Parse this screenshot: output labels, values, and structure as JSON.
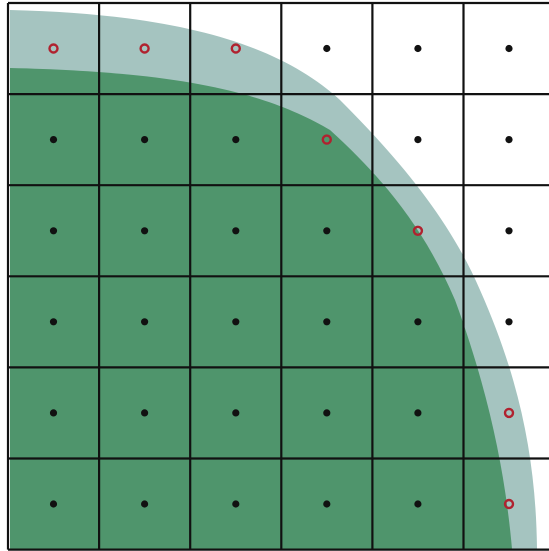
{
  "grid": {
    "rows": 6,
    "cols": 6,
    "open_markers": [
      [
        0,
        0
      ],
      [
        0,
        1
      ],
      [
        0,
        2
      ],
      [
        1,
        3
      ],
      [
        2,
        4
      ],
      [
        4,
        5
      ],
      [
        5,
        5
      ]
    ]
  },
  "colors": {
    "outer_region": "#a5c4c0",
    "inner_region": "#4f956c",
    "grid_line": "#111111",
    "dot_filled": "#111111",
    "dot_open": "#b0222f",
    "background": "#ffffff"
  }
}
